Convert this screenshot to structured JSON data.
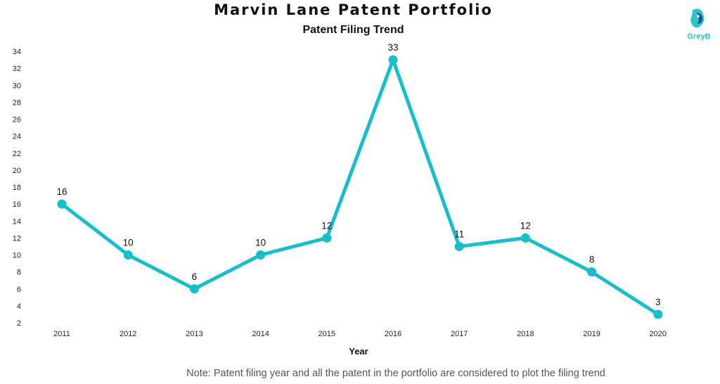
{
  "header": {
    "title": "Marvin Lane Patent Portfolio",
    "subtitle": "Patent Filing Trend"
  },
  "logo": {
    "text": "GreyB",
    "color": "#2ec4c8"
  },
  "note": "Note: Patent filing year and all the patent in the portfolio are considered to plot the filing trend",
  "chart_data": {
    "type": "line",
    "title": "Patent Filing Trend",
    "xlabel": "Year",
    "ylabel": "",
    "categories": [
      "2011",
      "2012",
      "2013",
      "2014",
      "2015",
      "2016",
      "2017",
      "2018",
      "2019",
      "2020"
    ],
    "series": [
      {
        "values": [
          16,
          10,
          6,
          10,
          12,
          33,
          11,
          12,
          8,
          3
        ],
        "color": "#16bfcc"
      }
    ],
    "ylim": [
      2,
      34
    ],
    "yticks": [
      "2",
      "4",
      "6",
      "8",
      "10",
      "12",
      "14",
      "16",
      "18",
      "20",
      "22",
      "24",
      "26",
      "28",
      "30",
      "32",
      "34"
    ],
    "data_labels": [
      "16",
      "10",
      "6",
      "10",
      "12",
      "33",
      "11",
      "12",
      "8",
      "3"
    ],
    "grid": false,
    "legend": "none"
  }
}
